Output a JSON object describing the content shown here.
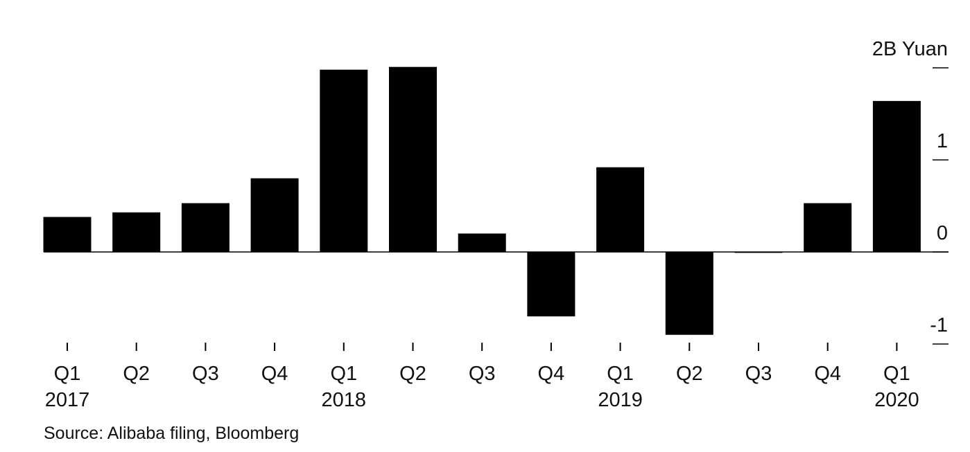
{
  "chart_data": {
    "type": "bar",
    "categories": [
      "Q1",
      "Q2",
      "Q3",
      "Q4",
      "Q1",
      "Q2",
      "Q3",
      "Q4",
      "Q1",
      "Q2",
      "Q3",
      "Q4",
      "Q1"
    ],
    "year_labels": [
      "2017",
      "",
      "",
      "",
      "2018",
      "",
      "",
      "",
      "2019",
      "",
      "",
      "",
      "2020"
    ],
    "values": [
      0.38,
      0.43,
      0.53,
      0.8,
      1.98,
      2.01,
      0.2,
      -0.7,
      0.92,
      -0.9,
      -0.01,
      0.53,
      1.64
    ],
    "ylabel": "2B Yuan",
    "y_ticks": [
      "-1",
      "0",
      "1",
      "2B Yuan"
    ],
    "y_tick_values": [
      -1,
      0,
      1,
      2
    ],
    "ylim": [
      -1,
      2
    ],
    "bar_color": "#000000",
    "grid": false
  },
  "source": "Source: Alibaba filing, Bloomberg"
}
